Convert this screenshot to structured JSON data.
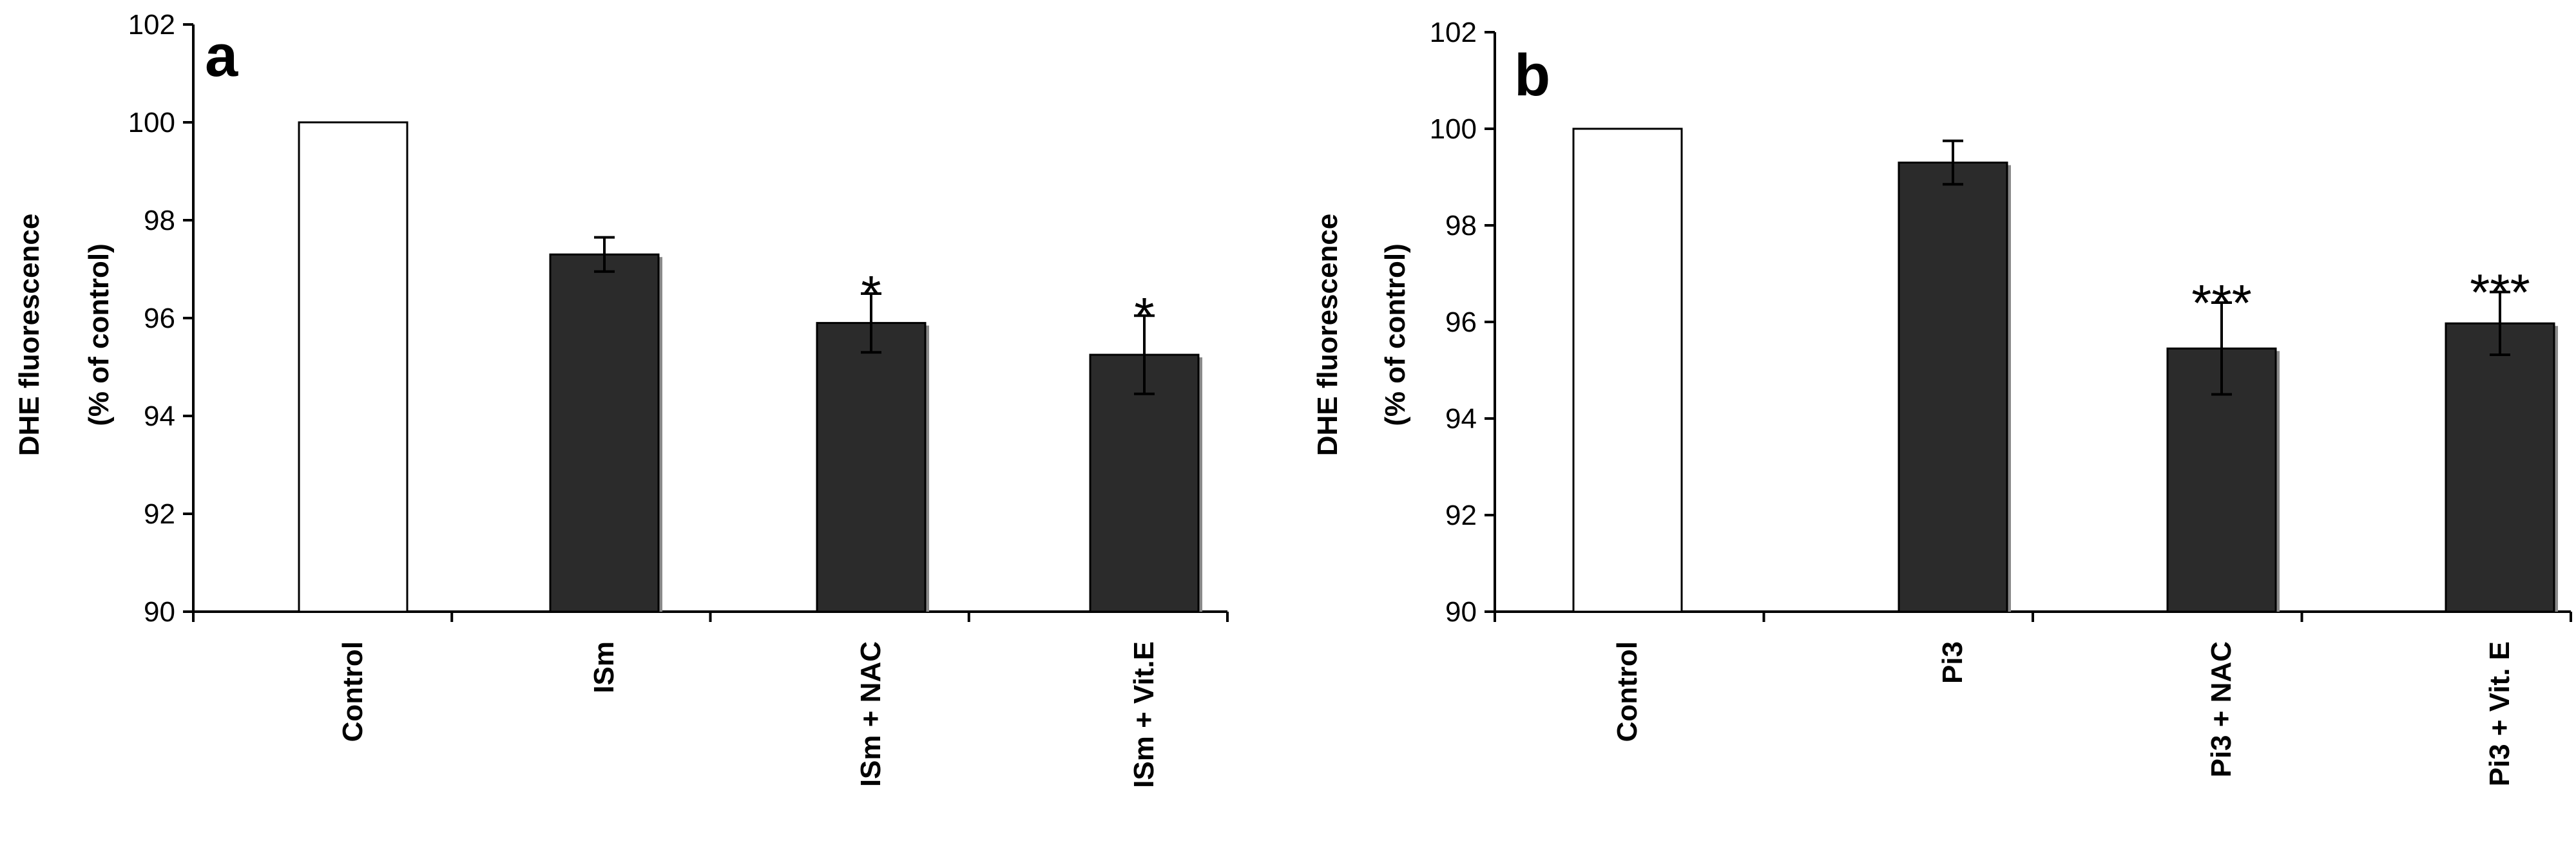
{
  "chart_data": [
    {
      "type": "bar",
      "panel_label": "a",
      "title": "",
      "ylabel": "DHE fluorescence (% of control)",
      "ylabel_lines": [
        "DHE fluorescence",
        "(% of control)"
      ],
      "xlabel": "",
      "ylim": [
        90,
        102
      ],
      "yticks": [
        90,
        92,
        94,
        96,
        98,
        100,
        102
      ],
      "ytick_labels": [
        "90",
        "92",
        "94",
        "96",
        "98",
        "100",
        "102"
      ],
      "categories": [
        "Control",
        "ISm",
        "ISm + NAC",
        "ISm + Vit.E"
      ],
      "values": [
        100.0,
        97.3,
        95.9,
        95.25
      ],
      "errors": [
        0,
        0.35,
        0.6,
        0.8
      ],
      "significance": [
        "",
        "",
        "*",
        "*"
      ],
      "bar_fill": [
        "#ffffff",
        "#2b2b2b",
        "#2b2b2b",
        "#2b2b2b"
      ],
      "grid": false,
      "legend": "none"
    },
    {
      "type": "bar",
      "panel_label": "b",
      "title": "",
      "ylabel": "DHE fluorescence (% of control)",
      "ylabel_lines": [
        "DHE fluorescence",
        "(% of control)"
      ],
      "xlabel": "",
      "ylim": [
        90,
        102
      ],
      "yticks": [
        90,
        92,
        94,
        96,
        98,
        100,
        102
      ],
      "ytick_labels": [
        "90",
        "92",
        "94",
        "96",
        "98",
        "100",
        "102"
      ],
      "categories": [
        "Control",
        "Pi3",
        "Pi3 + NAC",
        "Pi3 + Vit. E"
      ],
      "values": [
        100.0,
        99.3,
        95.45,
        95.97
      ],
      "errors": [
        0,
        0.45,
        0.95,
        0.65
      ],
      "significance": [
        "",
        "",
        "***",
        "***"
      ],
      "bar_fill": [
        "#ffffff",
        "#2b2b2b",
        "#2b2b2b",
        "#2b2b2b"
      ],
      "grid": false,
      "legend": "none"
    }
  ]
}
